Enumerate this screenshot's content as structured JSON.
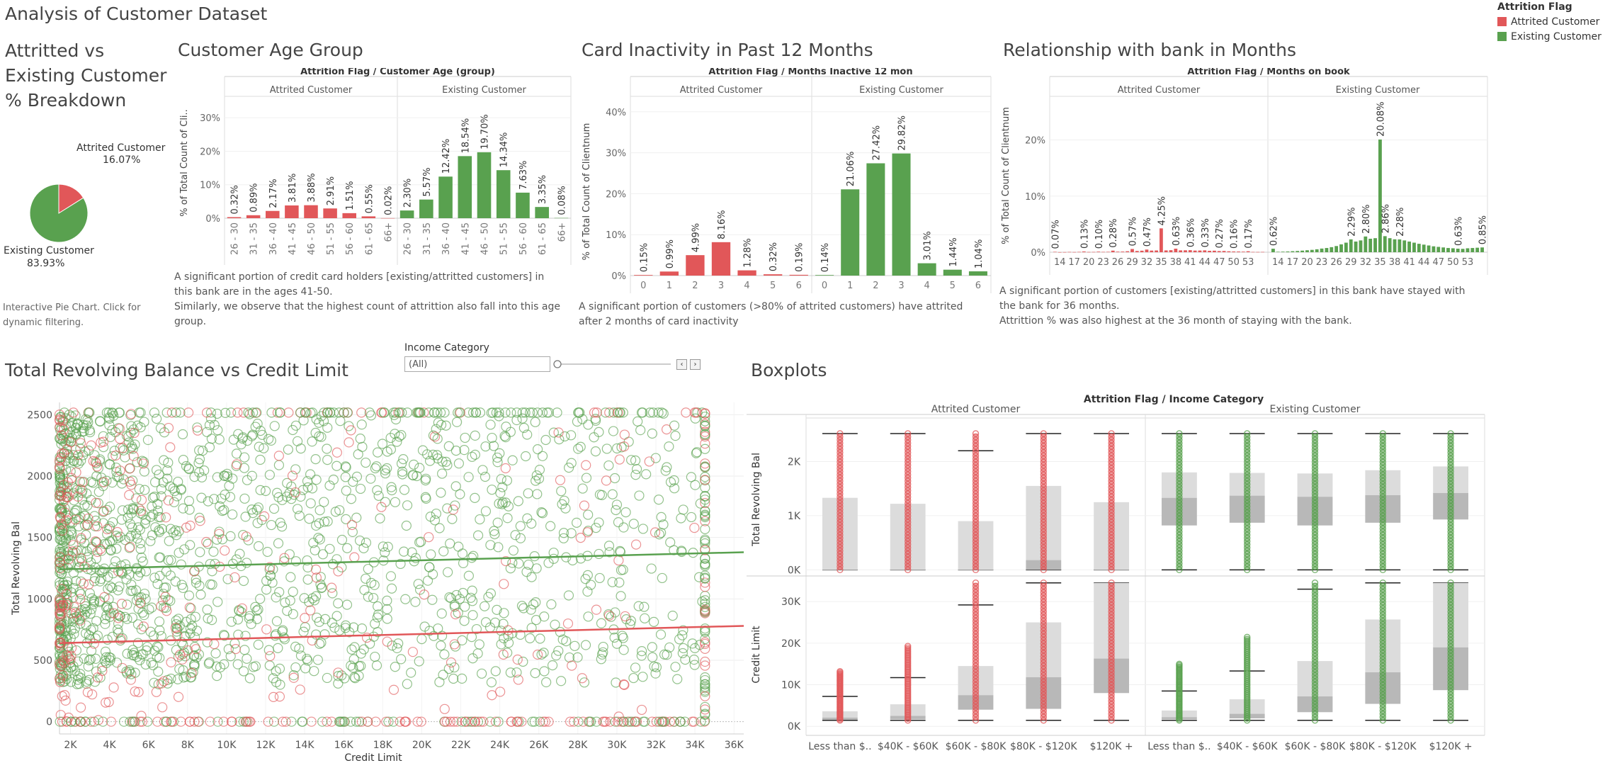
{
  "header": {
    "title": "Analysis of Customer Dataset"
  },
  "legend": {
    "title": "Attrition Flag",
    "items": [
      {
        "label": "Attrited Customer",
        "color": "#e15759"
      },
      {
        "label": "Existing Customer",
        "color": "#59a14f"
      }
    ]
  },
  "pie": {
    "title": "Attritted vs Existing Customer % Breakdown",
    "title_lines": [
      "Attritted vs",
      "Existing Customer",
      "% Breakdown"
    ],
    "attrited_label": "Attrited Customer",
    "attrited_pct": "16.07%",
    "existing_label": "Existing Customer",
    "existing_pct": "83.93%",
    "note_lines": [
      "Interactive Pie Chart. Click for",
      "dynamic filtering."
    ]
  },
  "age": {
    "title": "Customer Age Group",
    "note_lines": [
      "A significant portion of credit card holders [existing/attritted customers] in",
      "this bank are in the ages 41-50.",
      "Similarly, we observe that the highest count of attrittion also fall into this age",
      "group."
    ]
  },
  "inactive": {
    "title": "Card Inactivity in Past 12 Months",
    "note_lines": [
      "A significant portion of customers (>80% of attrited customers) have attrited",
      "after 2 months of card inactivity"
    ]
  },
  "tenure": {
    "title": "Relationship with bank in Months",
    "note_lines": [
      "A significant portion of customers [existing/attritted customers] in this bank have stayed with",
      "the bank for 36 months.",
      "Attrittion % was also highest at the 36 month of staying with the bank."
    ]
  },
  "scatter": {
    "title": "Total Revolving Balance vs Credit Limit"
  },
  "filter": {
    "label": "Income Category",
    "value": "(All)",
    "prev": "‹",
    "next": "›"
  },
  "box": {
    "title": "Boxplots"
  },
  "chart_data": [
    {
      "type": "pie",
      "slices": [
        {
          "label": "Attrited Customer",
          "value": 16.07
        },
        {
          "label": "Existing Customer",
          "value": 83.93
        }
      ]
    },
    {
      "type": "bar",
      "title": "Attrition Flag / Customer Age (group)",
      "ylabel": "% of Total Count of Cli..",
      "yticks": [
        "0%",
        "10%",
        "20%",
        "30%"
      ],
      "ylim": [
        0,
        33
      ],
      "panels": [
        "Attrited Customer",
        "Existing Customer"
      ],
      "categories": [
        "26 - 30",
        "31 - 35",
        "36 - 40",
        "41 - 45",
        "46 - 50",
        "51 - 55",
        "56 - 60",
        "61 - 65",
        "66+"
      ],
      "series": [
        {
          "name": "Attrited Customer",
          "values": [
            0.32,
            0.89,
            2.17,
            3.81,
            3.88,
            2.91,
            1.51,
            0.55,
            0.02
          ],
          "labels": [
            "0.32%",
            "0.89%",
            "2.17%",
            "3.81%",
            "3.88%",
            "2.91%",
            "1.51%",
            "0.55%",
            "0.02%"
          ]
        },
        {
          "name": "Existing Customer",
          "values": [
            2.3,
            5.57,
            12.42,
            18.54,
            19.7,
            14.34,
            7.63,
            3.35,
            0.08
          ],
          "labels": [
            "2.30%",
            "5.57%",
            "12.42%",
            "18.54%",
            "19.70%",
            "14.34%",
            "7.63%",
            "3.35%",
            "0.08%"
          ]
        }
      ]
    },
    {
      "type": "bar",
      "title": "Attrition Flag / Months Inactive 12 mon",
      "ylabel": "% of Total Count of Clientnum",
      "yticks": [
        "0%",
        "10%",
        "20%",
        "30%",
        "40%"
      ],
      "ylim": [
        0,
        41
      ],
      "panels": [
        "Attrited Customer",
        "Existing Customer"
      ],
      "categories": [
        "0",
        "1",
        "2",
        "3",
        "4",
        "5",
        "6"
      ],
      "series": [
        {
          "name": "Attrited Customer",
          "values": [
            0.15,
            0.99,
            4.99,
            8.16,
            1.28,
            0.32,
            0.19
          ],
          "labels": [
            "0.15%",
            "0.99%",
            "4.99%",
            "8.16%",
            "1.28%",
            "0.32%",
            "0.19%"
          ]
        },
        {
          "name": "Existing Customer",
          "values": [
            0.14,
            21.06,
            27.42,
            29.82,
            3.01,
            1.44,
            1.04
          ],
          "labels": [
            "0.14%",
            "21.06%",
            "27.42%",
            "29.82%",
            "3.01%",
            "1.44%",
            "1.04%"
          ]
        }
      ]
    },
    {
      "type": "bar",
      "title": "Attrition Flag / Months on book",
      "ylabel": "% of Total Count of Clientnum",
      "yticks": [
        "0%",
        "10%",
        "20%"
      ],
      "ylim": [
        0,
        26
      ],
      "panels": [
        "Attrited Customer",
        "Existing Customer"
      ],
      "x_start": 13,
      "x_end": 56,
      "xticks": [
        "14",
        "17",
        "20",
        "23",
        "26",
        "29",
        "32",
        "35",
        "38",
        "41",
        "44",
        "47",
        "50",
        "53"
      ],
      "series": [
        {
          "name": "Attrited Customer",
          "values": [
            0.07,
            0.01,
            0.02,
            0.05,
            0.03,
            0.06,
            0.13,
            0.04,
            0.05,
            0.1,
            0.06,
            0.07,
            0.28,
            0.1,
            0.11,
            0.17,
            0.57,
            0.22,
            0.27,
            0.47,
            0.29,
            0.31,
            4.25,
            0.32,
            0.36,
            0.63,
            0.33,
            0.34,
            0.36,
            0.29,
            0.3,
            0.33,
            0.25,
            0.27,
            0.2,
            0.22,
            0.16,
            0.13,
            0.12,
            0.1,
            0.17,
            0.05,
            0.04,
            0.05
          ],
          "point_labels": [
            {
              "x": 13,
              "label": "0.07%"
            },
            {
              "x": 19,
              "label": "0.13%"
            },
            {
              "x": 22,
              "label": "0.10%"
            },
            {
              "x": 25,
              "label": "0.28%"
            },
            {
              "x": 29,
              "label": "0.57%"
            },
            {
              "x": 32,
              "label": "0.47%"
            },
            {
              "x": 35,
              "label": "4.25%"
            },
            {
              "x": 38,
              "label": "0.63%"
            },
            {
              "x": 41,
              "label": "0.36%"
            },
            {
              "x": 44,
              "label": "0.33%"
            },
            {
              "x": 47,
              "label": "0.27%"
            },
            {
              "x": 50,
              "label": "0.16%"
            },
            {
              "x": 53,
              "label": "0.17%"
            }
          ]
        },
        {
          "name": "Existing Customer",
          "values": [
            0.62,
            0.08,
            0.1,
            0.13,
            0.18,
            0.22,
            0.28,
            0.35,
            0.42,
            0.52,
            0.65,
            0.75,
            0.9,
            1.1,
            1.4,
            1.7,
            2.29,
            1.9,
            2.1,
            2.8,
            2.4,
            2.5,
            20.08,
            2.86,
            2.5,
            2.3,
            2.28,
            2.1,
            1.9,
            1.7,
            1.5,
            1.35,
            1.2,
            1.05,
            0.95,
            0.85,
            0.75,
            0.7,
            0.63,
            0.6,
            0.7,
            0.75,
            0.8,
            0.85
          ],
          "point_labels": [
            {
              "x": 13,
              "label": "0.62%"
            },
            {
              "x": 29,
              "label": "2.29%"
            },
            {
              "x": 32,
              "label": "2.80%"
            },
            {
              "x": 35,
              "label": "20.08%"
            },
            {
              "x": 36,
              "label": "2.86%"
            },
            {
              "x": 39,
              "label": "2.28%"
            },
            {
              "x": 51,
              "label": "0.63%"
            },
            {
              "x": 56,
              "label": "0.85%"
            }
          ]
        }
      ]
    },
    {
      "type": "scatter",
      "xlabel": "Credit Limit",
      "ylabel": "Total Revolving Bal",
      "xlim": [
        1438,
        36500
      ],
      "ylim": [
        -100,
        2600
      ],
      "xticks": [
        "2K",
        "4K",
        "6K",
        "8K",
        "10K",
        "12K",
        "14K",
        "16K",
        "18K",
        "20K",
        "22K",
        "24K",
        "26K",
        "28K",
        "30K",
        "32K",
        "34K",
        "36K"
      ],
      "yticks": [
        "0",
        "500",
        "1000",
        "1500",
        "2000",
        "2500"
      ],
      "trend_lines": [
        {
          "name": "Existing Customer",
          "start": [
            1438,
            1240
          ],
          "end": [
            36500,
            1380
          ]
        },
        {
          "name": "Attrited Customer",
          "start": [
            1438,
            640
          ],
          "end": [
            36500,
            780
          ]
        }
      ]
    },
    {
      "type": "boxplot",
      "title": "Attrition Flag / Income Category",
      "panels": [
        "Attrited Customer",
        "Existing Customer"
      ],
      "categories": [
        "Less than $..",
        "$40K - $60K",
        "$60K - $80K",
        "$80K - $120K",
        "$120K +"
      ],
      "rows": [
        {
          "ylabel": "Total Revolving Bal",
          "yticks": [
            "0K",
            "1K",
            "2K"
          ],
          "ylim": [
            -100,
            2700
          ],
          "series": [
            {
              "name": "Attrited Customer",
              "boxes": [
                {
                  "whisker_low": 0,
                  "q1": 0,
                  "median": 0,
                  "q3": 1330,
                  "whisker_high": 2517
                },
                {
                  "whisker_low": 0,
                  "q1": 0,
                  "median": 0,
                  "q3": 1220,
                  "whisker_high": 2517
                },
                {
                  "whisker_low": 0,
                  "q1": 0,
                  "median": 0,
                  "q3": 900,
                  "whisker_high": 2200
                },
                {
                  "whisker_low": 0,
                  "q1": 0,
                  "median": 180,
                  "q3": 1550,
                  "whisker_high": 2517
                },
                {
                  "whisker_low": 0,
                  "q1": 0,
                  "median": 0,
                  "q3": 1250,
                  "whisker_high": 2517
                }
              ]
            },
            {
              "name": "Existing Customer",
              "boxes": [
                {
                  "whisker_low": 0,
                  "q1": 820,
                  "median": 1330,
                  "q3": 1800,
                  "whisker_high": 2517
                },
                {
                  "whisker_low": 0,
                  "q1": 870,
                  "median": 1370,
                  "q3": 1790,
                  "whisker_high": 2517
                },
                {
                  "whisker_low": 0,
                  "q1": 820,
                  "median": 1350,
                  "q3": 1780,
                  "whisker_high": 2517
                },
                {
                  "whisker_low": 0,
                  "q1": 870,
                  "median": 1380,
                  "q3": 1840,
                  "whisker_high": 2517
                },
                {
                  "whisker_low": 0,
                  "q1": 930,
                  "median": 1420,
                  "q3": 1910,
                  "whisker_high": 2517
                }
              ]
            }
          ]
        },
        {
          "ylabel": "Credit Limit",
          "yticks": [
            "0K",
            "10K",
            "20K",
            "30K"
          ],
          "ylim": [
            -1500,
            36000
          ],
          "series": [
            {
              "name": "Attrited Customer",
              "boxes": [
                {
                  "whisker_low": 1438,
                  "q1": 1600,
                  "median": 2100,
                  "q3": 3600,
                  "whisker_high": 7200
                },
                {
                  "whisker_low": 1438,
                  "q1": 1700,
                  "median": 2500,
                  "q3": 5300,
                  "whisker_high": 11700
                },
                {
                  "whisker_low": 1438,
                  "q1": 4000,
                  "median": 7500,
                  "q3": 14500,
                  "whisker_high": 29200
                },
                {
                  "whisker_low": 1438,
                  "q1": 4200,
                  "median": 11800,
                  "q3": 25000,
                  "whisker_high": 34516
                },
                {
                  "whisker_low": 1438,
                  "q1": 8000,
                  "median": 16300,
                  "q3": 34516,
                  "whisker_high": 34516
                }
              ]
            },
            {
              "name": "Existing Customer",
              "boxes": [
                {
                  "whisker_low": 1438,
                  "q1": 1700,
                  "median": 2200,
                  "q3": 3800,
                  "whisker_high": 8500
                },
                {
                  "whisker_low": 1438,
                  "q1": 1900,
                  "median": 3000,
                  "q3": 6500,
                  "whisker_high": 13300
                },
                {
                  "whisker_low": 1438,
                  "q1": 3400,
                  "median": 7200,
                  "q3": 15700,
                  "whisker_high": 33000
                },
                {
                  "whisker_low": 1438,
                  "q1": 5400,
                  "median": 13000,
                  "q3": 25700,
                  "whisker_high": 34516
                },
                {
                  "whisker_low": 1438,
                  "q1": 8700,
                  "median": 19000,
                  "q3": 34516,
                  "whisker_high": 34516
                }
              ]
            }
          ]
        }
      ]
    }
  ]
}
